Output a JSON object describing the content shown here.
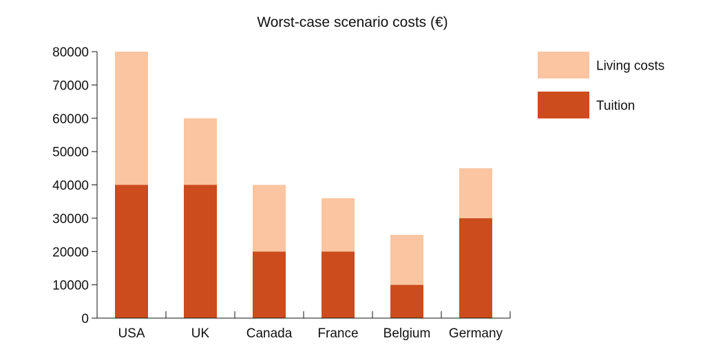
{
  "chart_data": {
    "type": "bar",
    "stacked": true,
    "title": "Worst-case scenario costs (€)",
    "xlabel": "",
    "ylabel": "",
    "categories": [
      "USA",
      "UK",
      "Canada",
      "France",
      "Belgium",
      "Germany"
    ],
    "series": [
      {
        "name": "Tuition",
        "values": [
          40000,
          40000,
          20000,
          20000,
          10000,
          30000
        ],
        "color": "#cc4c1e"
      },
      {
        "name": "Living costs",
        "values": [
          40000,
          20000,
          20000,
          16000,
          15000,
          15000
        ],
        "color": "#fac5a0"
      }
    ],
    "ylim": [
      0,
      80000
    ],
    "yticks": [
      0,
      10000,
      20000,
      30000,
      40000,
      50000,
      60000,
      70000,
      80000
    ],
    "grid": false,
    "legend_position": "top-right"
  }
}
